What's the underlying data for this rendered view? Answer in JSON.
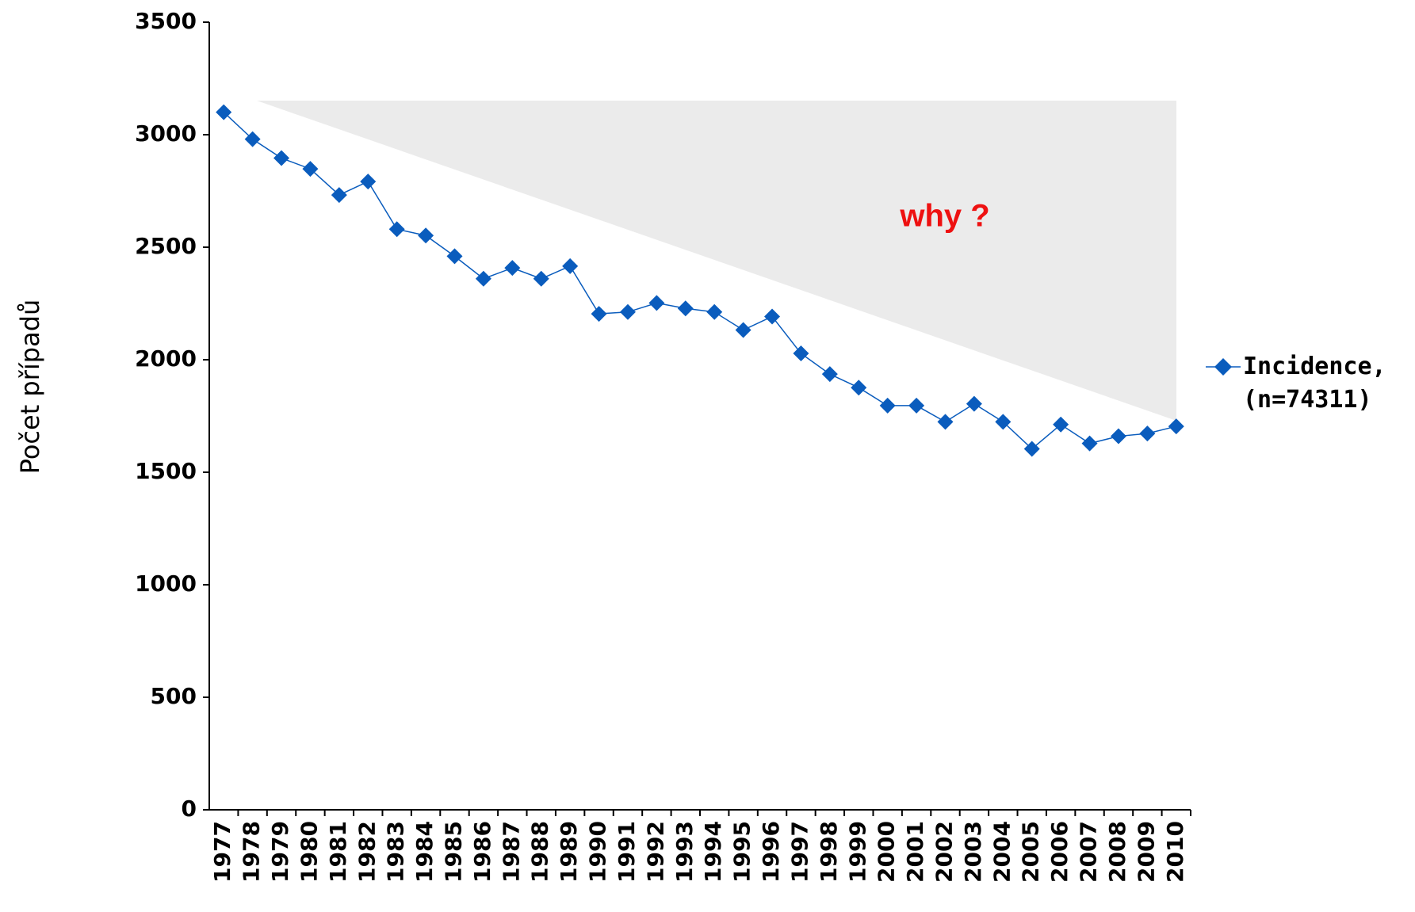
{
  "chart_data": {
    "type": "line",
    "ylabel": "Počet případů",
    "annotation": "why ?",
    "categories": [
      "1977",
      "1978",
      "1979",
      "1980",
      "1981",
      "1982",
      "1983",
      "1984",
      "1985",
      "1986",
      "1987",
      "1988",
      "1989",
      "1990",
      "1991",
      "1992",
      "1993",
      "1994",
      "1995",
      "1996",
      "1997",
      "1998",
      "1999",
      "2000",
      "2001",
      "2002",
      "2003",
      "2004",
      "2005",
      "2006",
      "2007",
      "2008",
      "2009",
      "2010"
    ],
    "series": [
      {
        "name": "Incidence,\n(n=74311)",
        "color": "#0a5cbd",
        "values": [
          3100,
          2980,
          2896,
          2848,
          2732,
          2792,
          2580,
          2552,
          2460,
          2360,
          2408,
          2360,
          2416,
          2204,
          2212,
          2252,
          2228,
          2212,
          2132,
          2192,
          2028,
          1936,
          1876,
          1796,
          1796,
          1724,
          1804,
          1724,
          1604,
          1712,
          1628,
          1660,
          1672,
          1704
        ]
      }
    ],
    "ylim": [
      0,
      3500
    ],
    "yticks": [
      0,
      500,
      1000,
      1500,
      2000,
      2500,
      3000,
      3500
    ],
    "legend": "right"
  }
}
